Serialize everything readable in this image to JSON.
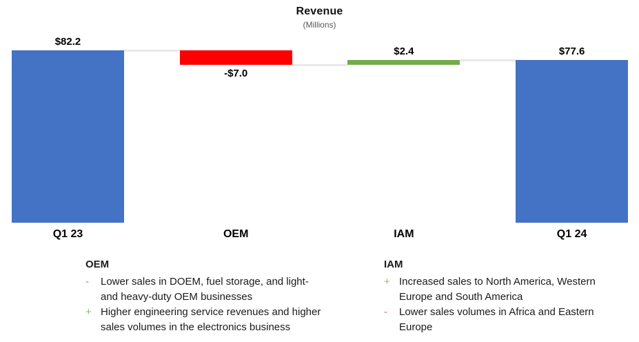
{
  "title": "Revenue",
  "subtitle": "(Millions)",
  "colors": {
    "bar_total": "#4472C4",
    "bar_negative": "#FF0000",
    "bar_positive": "#72AC4B",
    "connector": "#E9E9E9",
    "minus_marker": "#E06666",
    "plus_marker": "#8FBC6F",
    "subtitle_text": "#595959",
    "body_text": "#1A1A1A"
  },
  "chart_data": {
    "type": "bar",
    "subtype": "waterfall",
    "title": "Revenue",
    "subtitle": "(Millions)",
    "categories": [
      "Q1 23",
      "OEM",
      "IAM",
      "Q1 24"
    ],
    "columns": [
      {
        "category": "Q1 23",
        "role": "total",
        "value": 82.2,
        "label": "$82.2",
        "label_position": "above"
      },
      {
        "category": "OEM",
        "role": "decrease",
        "value": -7.0,
        "label": "-$7.0",
        "label_position": "below"
      },
      {
        "category": "IAM",
        "role": "increase",
        "value": 2.4,
        "label": "$2.4",
        "label_position": "above"
      },
      {
        "category": "Q1 24",
        "role": "total",
        "value": 77.6,
        "label": "$77.6",
        "label_position": "above"
      }
    ],
    "ylim": [
      0,
      82.2
    ],
    "axis_visible": false,
    "gridlines": false,
    "legend": "none"
  },
  "notes": {
    "oem": {
      "heading": "OEM",
      "bullets": [
        {
          "marker": "-",
          "sign": "negative",
          "text": "Lower sales in DOEM, fuel storage, and light-\nand heavy-duty OEM businesses"
        },
        {
          "marker": "+",
          "sign": "positive",
          "text": "Higher engineering service revenues and higher\nsales volumes in the electronics business"
        }
      ]
    },
    "iam": {
      "heading": "IAM",
      "bullets": [
        {
          "marker": "+",
          "sign": "positive",
          "text": "Increased sales to North America, Western\nEurope and South America"
        },
        {
          "marker": "-",
          "sign": "negative",
          "text": "Lower sales volumes in Africa and Eastern\nEurope"
        }
      ]
    }
  }
}
